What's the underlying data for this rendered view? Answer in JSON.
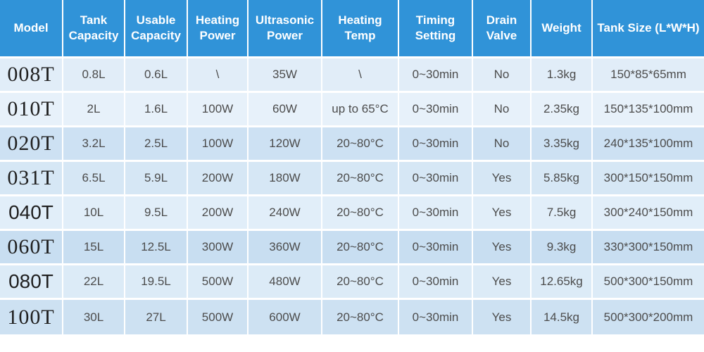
{
  "theme": {
    "header_bg": "#3093d8",
    "header_text": "#ffffff",
    "body_text": "#4c4c4c",
    "model_text": "#1f1f1f",
    "row_shades": [
      "#e1edf8",
      "#e7f1fa",
      "#cde1f3",
      "#d6e7f5",
      "#e1eef9",
      "#c8def1",
      "#dcebf7",
      "#cde1f2"
    ]
  },
  "table": {
    "columns": [
      {
        "label": "Model"
      },
      {
        "label": "Tank Capacity"
      },
      {
        "label": "Usable Capacity"
      },
      {
        "label": "Heating Power"
      },
      {
        "label": "Ultrasonic Power"
      },
      {
        "label": "Heating Temp"
      },
      {
        "label": "Timing Setting"
      },
      {
        "label": "Drain Valve"
      },
      {
        "label": "Weight"
      },
      {
        "label": "Tank Size (L*W*H)"
      }
    ],
    "rows": [
      {
        "model": "008T",
        "tank_capacity": "0.8L",
        "usable_capacity": "0.6L",
        "heating_power": "\\",
        "ultrasonic_power": "35W",
        "heating_temp": "\\",
        "timing_setting": "0~30min",
        "drain_valve": "No",
        "weight": "1.3kg",
        "tank_size": "150*85*65mm"
      },
      {
        "model": "010T",
        "tank_capacity": "2L",
        "usable_capacity": "1.6L",
        "heating_power": "100W",
        "ultrasonic_power": "60W",
        "heating_temp": "up to 65°C",
        "timing_setting": "0~30min",
        "drain_valve": "No",
        "weight": "2.35kg",
        "tank_size": "150*135*100mm"
      },
      {
        "model": "020T",
        "tank_capacity": "3.2L",
        "usable_capacity": "2.5L",
        "heating_power": "100W",
        "ultrasonic_power": "120W",
        "heating_temp": "20~80°C",
        "timing_setting": "0~30min",
        "drain_valve": "No",
        "weight": "3.35kg",
        "tank_size": "240*135*100mm"
      },
      {
        "model": "031T",
        "tank_capacity": "6.5L",
        "usable_capacity": "5.9L",
        "heating_power": "200W",
        "ultrasonic_power": "180W",
        "heating_temp": "20~80°C",
        "timing_setting": "0~30min",
        "drain_valve": "Yes",
        "weight": "5.85kg",
        "tank_size": "300*150*150mm"
      },
      {
        "model": "040T",
        "tank_capacity": "10L",
        "usable_capacity": "9.5L",
        "heating_power": "200W",
        "ultrasonic_power": "240W",
        "heating_temp": "20~80°C",
        "timing_setting": "0~30min",
        "drain_valve": "Yes",
        "weight": "7.5kg",
        "tank_size": "300*240*150mm"
      },
      {
        "model": "060T",
        "tank_capacity": "15L",
        "usable_capacity": "12.5L",
        "heating_power": "300W",
        "ultrasonic_power": "360W",
        "heating_temp": "20~80°C",
        "timing_setting": "0~30min",
        "drain_valve": "Yes",
        "weight": "9.3kg",
        "tank_size": "330*300*150mm"
      },
      {
        "model": "080T",
        "tank_capacity": "22L",
        "usable_capacity": "19.5L",
        "heating_power": "500W",
        "ultrasonic_power": "480W",
        "heating_temp": "20~80°C",
        "timing_setting": "0~30min",
        "drain_valve": "Yes",
        "weight": "12.65kg",
        "tank_size": "500*300*150mm"
      },
      {
        "model": "100T",
        "tank_capacity": "30L",
        "usable_capacity": "27L",
        "heating_power": "500W",
        "ultrasonic_power": "600W",
        "heating_temp": "20~80°C",
        "timing_setting": "0~30min",
        "drain_valve": "Yes",
        "weight": "14.5kg",
        "tank_size": "500*300*200mm"
      }
    ]
  }
}
